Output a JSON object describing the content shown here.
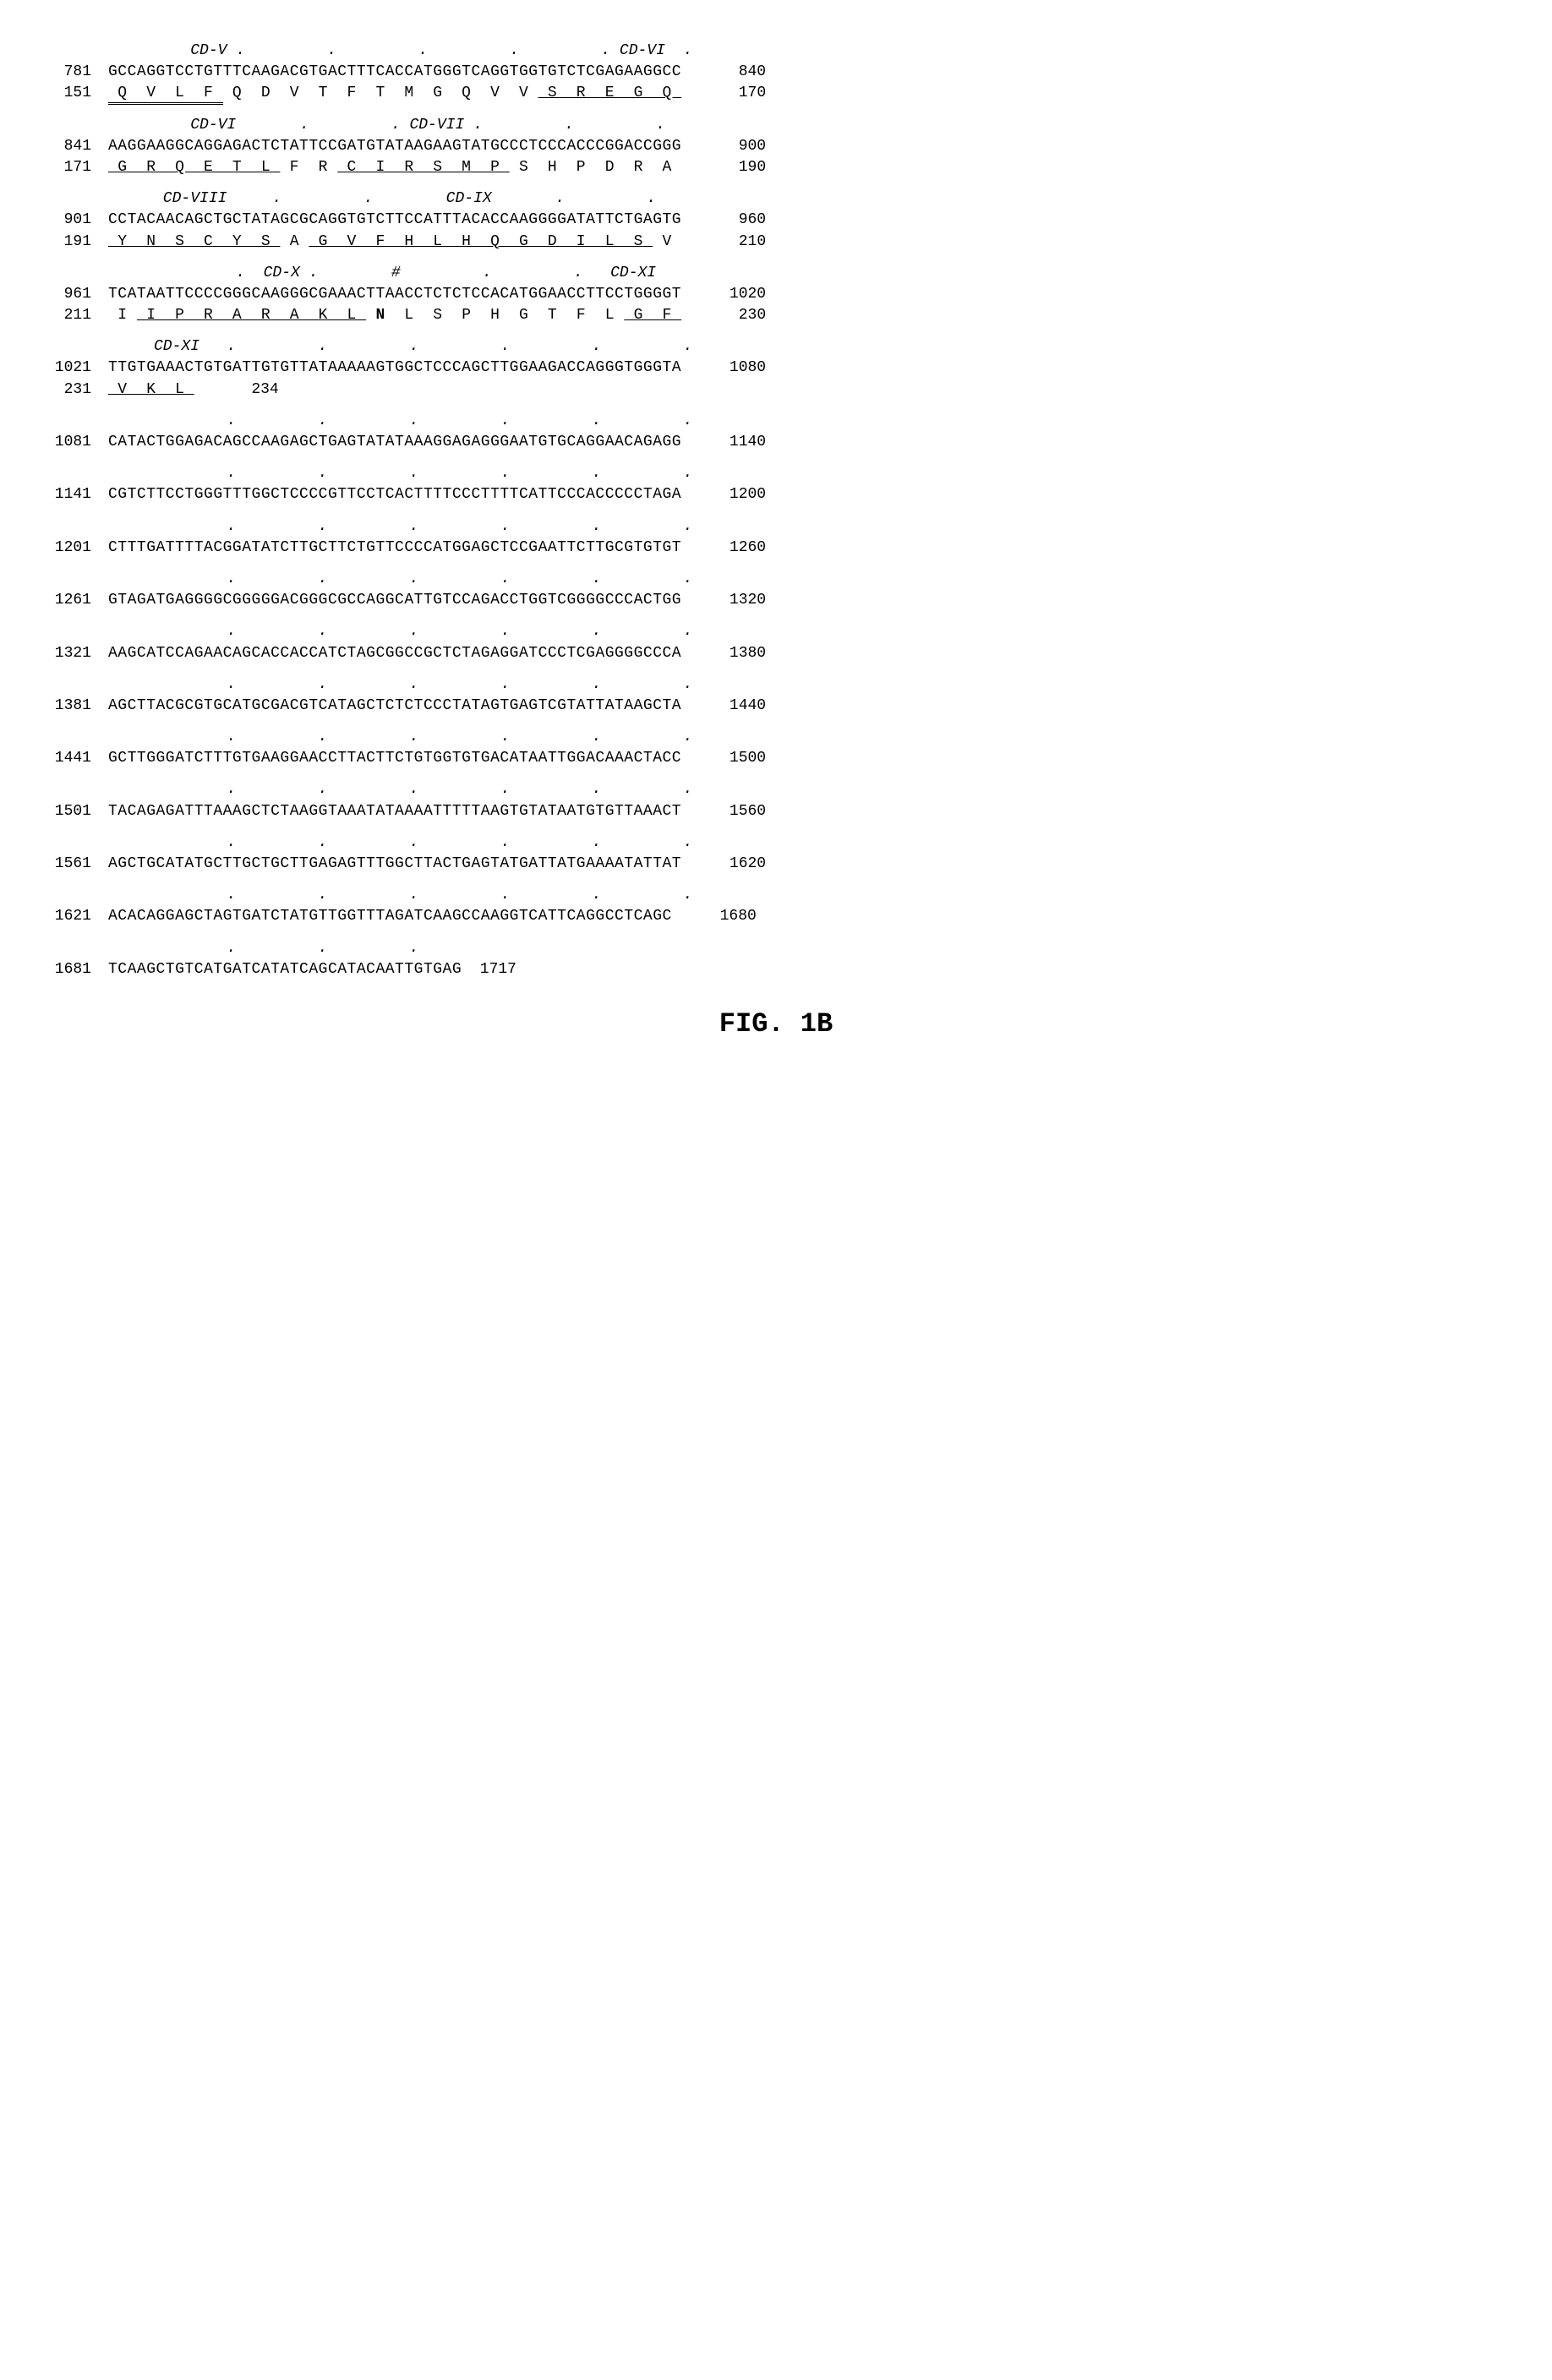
{
  "figure_label": "FIG. 1B",
  "blocks": [
    {
      "ann": "         CD-V .         .         .         .         . CD-VI  .",
      "nuc_l": "781",
      "nuc": "GCCAGGTCCTGTTTCAAGACGTGACTTTCACCATGGGTCAGGTGGTGTCTCGAGAAGGCC",
      "nuc_r": "840",
      "prot_l": "151",
      "prot_segs": [
        {
          "t": " Q  V  L  F ",
          "cls": "dbl-under"
        },
        {
          "t": " Q  D  V  T  F  T  M  G  Q  V  V ",
          "cls": ""
        },
        {
          "t": " S  R  E  G  Q ",
          "cls": "underline"
        }
      ],
      "prot_r": "170"
    },
    {
      "ann": "         CD-VI       .         . CD-VII .         .         .",
      "nuc_l": "841",
      "nuc": "AAGGAAGGCAGGAGACTCTATTCCGATGTATAAGAAGTATGCCCTCCCACCCGGACCGGG",
      "nuc_r": "900",
      "prot_l": "171",
      "prot_segs": [
        {
          "t": " G  R  Q  E  T  L ",
          "cls": "underline"
        },
        {
          "t": " F  R ",
          "cls": ""
        },
        {
          "t": " C  I  R  S  M  P ",
          "cls": "underline"
        },
        {
          "t": " S  H  P  D  R  A ",
          "cls": ""
        }
      ],
      "prot_r": "190"
    },
    {
      "ann": "      CD-VIII     .         .        CD-IX       .         .",
      "nuc_l": "901",
      "nuc": "CCTACAACAGCTGCTATAGCGCAGGTGTCTTCCATTTACACCAAGGGGATATTCTGAGTG",
      "nuc_r": "960",
      "prot_l": "191",
      "prot_segs": [
        {
          "t": " Y  N  S  C  Y  S ",
          "cls": "underline"
        },
        {
          "t": " A ",
          "cls": ""
        },
        {
          "t": " G  V  F  H  L  H  Q  G  D  I  L  S ",
          "cls": "underline"
        },
        {
          "t": " V ",
          "cls": ""
        }
      ],
      "prot_r": "210"
    },
    {
      "ann": "              .  CD-X .        #         .         .   CD-XI",
      "nuc_l": "961",
      "nuc": "TCATAATTCCCCGGGCAAGGGCGAAACTTAACCTCTCTCCACATGGAACCTTCCTGGGGT",
      "nuc_r": "1020",
      "prot_l": "211",
      "prot_segs": [
        {
          "t": " I ",
          "cls": ""
        },
        {
          "t": " I  P  R  A  R  A  K  L ",
          "cls": "underline"
        },
        {
          "t": " ",
          "cls": ""
        },
        {
          "t": "N",
          "cls": "bold"
        },
        {
          "t": "  L  S  P  H  G  T  F  L ",
          "cls": ""
        },
        {
          "t": " G  F ",
          "cls": "underline"
        }
      ],
      "prot_r": "230"
    },
    {
      "ann": "     CD-XI   .         .         .         .         .         .",
      "nuc_l": "1021",
      "nuc": "TTGTGAAACTGTGATTGTGTTATAAAAAGTGGCTCCCAGCTTGGAAGACCAGGGTGGGTA",
      "nuc_r": "1080",
      "prot_l": "231",
      "prot_segs": [
        {
          "t": " V  K  L ",
          "cls": "underline"
        }
      ],
      "prot_r": "234"
    },
    {
      "ann": "             .         .         .         .         .         .",
      "nuc_l": "1081",
      "nuc": "CATACTGGAGACAGCCAAGAGCTGAGTATATAAAGGAGAGGGAATGTGCAGGAACAGAGG",
      "nuc_r": "1140"
    },
    {
      "ann": "             .         .         .         .         .         .",
      "nuc_l": "1141",
      "nuc": "CGTCTTCCTGGGTTTGGCTCCCCGTTCCTCACTTTTCCCTTTTCATTCCCACCCCCTAGA",
      "nuc_r": "1200"
    },
    {
      "ann": "             .         .         .         .         .         .",
      "nuc_l": "1201",
      "nuc": "CTTTGATTTTACGGATATCTTGCTTCTGTTCCCCATGGAGCTCCGAATTCTTGCGTGTGT",
      "nuc_r": "1260"
    },
    {
      "ann": "             .         .         .         .         .         .",
      "nuc_l": "1261",
      "nuc": "GTAGATGAGGGGCGGGGGACGGGCGCCAGGCATTGTCCAGACCTGGTCGGGGCCCACTGG",
      "nuc_r": "1320"
    },
    {
      "ann": "             .         .         .         .         .         .",
      "nuc_l": "1321",
      "nuc": "AAGCATCCAGAACAGCACCACCATCTAGCGGCCGCTCTAGAGGATCCCTCGAGGGGCCCA",
      "nuc_r": "1380"
    },
    {
      "ann": "             .         .         .         .         .         .",
      "nuc_l": "1381",
      "nuc": "AGCTTACGCGTGCATGCGACGTCATAGCTCTCTCCCTATAGTGAGTCGTATTATAAGCTA",
      "nuc_r": "1440"
    },
    {
      "ann": "             .         .         .         .         .         .",
      "nuc_l": "1441",
      "nuc": "GCTTGGGATCTTTGTGAAGGAACCTTACTTCTGTGGTGTGACATAATTGGACAAACTACC",
      "nuc_r": "1500"
    },
    {
      "ann": "             .         .         .         .         .         .",
      "nuc_l": "1501",
      "nuc": "TACAGAGATTTAAAGCTCTAAGGTAAATATAAAATTTTTAAGTGTATAATGTGTTAAACT",
      "nuc_r": "1560"
    },
    {
      "ann": "             .         .         .         .         .         .",
      "nuc_l": "1561",
      "nuc": "AGCTGCATATGCTTGCTGCTTGAGAGTTTGGCTTACTGAGTATGATTATGAAAATATTAT",
      "nuc_r": "1620"
    },
    {
      "ann": "             .         .         .         .         .         .",
      "nuc_l": "1621",
      "nuc": "ACACAGGAGCTAGTGATCTATGTTGGTTTAGATCAAGCCAAGGTCATTCAGGCCTCAGC",
      "nuc_r": "1680"
    },
    {
      "ann": "             .         .         .",
      "nuc_l": "1681",
      "nuc": "TCAAGCTGTCATGATCATATCAGCATACAATTGTGAG",
      "nuc_r": "1717",
      "inline_right": true
    }
  ]
}
